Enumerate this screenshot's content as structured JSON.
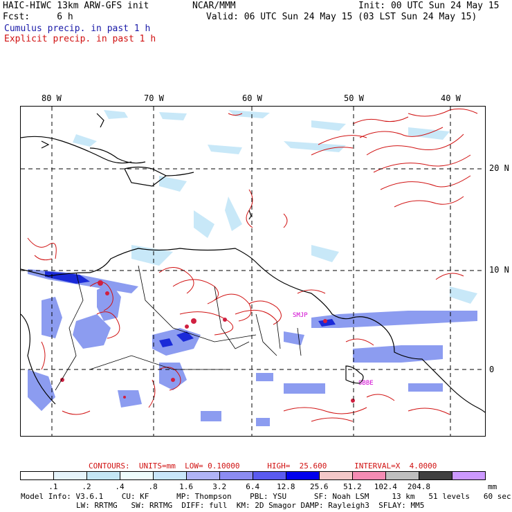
{
  "header": {
    "model": "HAIC-HIWC 13km ARW-GFS init",
    "org": "NCAR/MMM",
    "init": "Init: 00 UTC Sun 24 May 15",
    "fcst": "Fcst:     6 h",
    "valid": "Valid: 06 UTC Sun 24 May 15 (03 LST Sun 24 May 15)",
    "cumulus": "Cumulus precip. in past 1 h",
    "explicit": "Explicit precip. in past 1 h"
  },
  "map": {
    "lon_labels": [
      "80 W",
      "70 W",
      "60 W",
      "50 W",
      "40 W"
    ],
    "lat_labels": [
      "20 N",
      "10 N",
      "0"
    ],
    "stations": [
      "SMJP",
      "SBBE"
    ],
    "colors": {
      "cumulus": "#5a6af0",
      "explicit": "#d01010",
      "light_blue": "#c8e8f8"
    }
  },
  "contours": {
    "label": "CONTOURS:  UNITS=mm  LOW= 0.10000      HIGH=  25.600      INTERVAL=X  4.0000"
  },
  "colorbar": {
    "colors": [
      "#ffffff",
      "#e6f4fb",
      "#c4e6f5",
      "#eefcfc",
      "#c8e6fa",
      "#b0b4f6",
      "#8c8cf2",
      "#5a5af0",
      "#0000ee",
      "#f4c8c8",
      "#f58cb4",
      "#bfbfbf",
      "#404040",
      "#cc99ff"
    ],
    "labels": [
      ".1",
      ".2",
      ".4",
      ".8",
      "1.6",
      "3.2",
      "6.4",
      "12.8",
      "25.6",
      "51.2",
      "102.4",
      "204.8"
    ],
    "unit": "mm"
  },
  "model_info": {
    "line1": "Model Info: V3.6.1    CU: KF      MP: Thompson    PBL: YSU      SF: Noah LSM     13 km   51 levels   60 sec",
    "line2": "LW: RRTMG   SW: RRTMG  DIFF: full  KM: 2D Smagor DAMP: Rayleigh3  SFLAY: MM5"
  }
}
